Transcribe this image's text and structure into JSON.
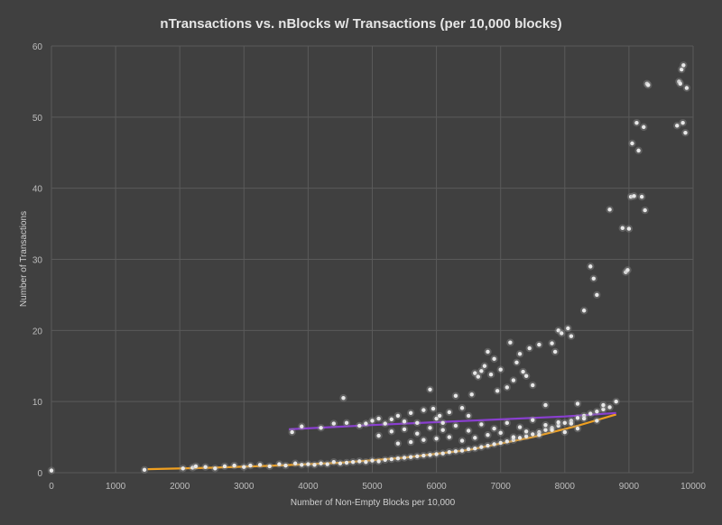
{
  "chart_data": {
    "type": "scatter",
    "title": "nTransactions vs. nBlocks w/ Transactions (per 10,000 blocks)",
    "xlabel": "Number of Non-Empty Blocks per 10,000",
    "ylabel": "Number of Transactions",
    "xlim": [
      0,
      10000
    ],
    "ylim": [
      0,
      60
    ],
    "xticks": [
      "0",
      "1000",
      "2000",
      "3000",
      "4000",
      "5000",
      "6000",
      "7000",
      "8000",
      "9000",
      "10000"
    ],
    "yticks": [
      "0",
      "10",
      "20",
      "30",
      "40",
      "50",
      "60"
    ],
    "grid": true,
    "legend": "none",
    "colors": {
      "background": "#404040",
      "points": "#e8e8e8",
      "glow": "#9a9a9a",
      "trend_low": "#f0a020",
      "trend_high": "#8a3fd0"
    },
    "series": [
      {
        "points": [
          [
            0,
            0.3
          ],
          [
            1450,
            0.4
          ],
          [
            2050,
            0.6
          ],
          [
            2200,
            0.7
          ],
          [
            2250,
            0.9
          ],
          [
            2400,
            0.8
          ],
          [
            2550,
            0.6
          ],
          [
            2700,
            0.9
          ],
          [
            2850,
            1.0
          ],
          [
            3000,
            0.8
          ],
          [
            3100,
            1.0
          ],
          [
            3250,
            1.1
          ],
          [
            3400,
            0.9
          ],
          [
            3550,
            1.2
          ],
          [
            3650,
            1.0
          ],
          [
            3800,
            1.3
          ],
          [
            3900,
            1.1
          ],
          [
            4000,
            1.2
          ],
          [
            4100,
            1.1
          ],
          [
            4200,
            1.3
          ],
          [
            4300,
            1.2
          ],
          [
            4400,
            1.5
          ],
          [
            4500,
            1.3
          ],
          [
            4600,
            1.4
          ],
          [
            4700,
            1.5
          ],
          [
            4800,
            1.6
          ],
          [
            4900,
            1.5
          ],
          [
            5000,
            1.7
          ],
          [
            5100,
            1.6
          ],
          [
            5200,
            1.8
          ],
          [
            5300,
            1.9
          ],
          [
            5400,
            2.0
          ],
          [
            5500,
            2.1
          ],
          [
            5600,
            2.2
          ],
          [
            5700,
            2.3
          ],
          [
            5800,
            2.4
          ],
          [
            5900,
            2.5
          ],
          [
            6000,
            2.6
          ],
          [
            6100,
            2.7
          ],
          [
            6200,
            2.9
          ],
          [
            6300,
            3.0
          ],
          [
            6400,
            3.1
          ],
          [
            6500,
            3.3
          ],
          [
            6600,
            3.4
          ],
          [
            6700,
            3.6
          ],
          [
            6800,
            3.8
          ],
          [
            6900,
            4.0
          ],
          [
            7000,
            4.2
          ],
          [
            7100,
            4.4
          ],
          [
            7200,
            4.6
          ],
          [
            7300,
            4.9
          ],
          [
            7400,
            5.1
          ],
          [
            7500,
            5.4
          ],
          [
            7600,
            5.7
          ],
          [
            7700,
            6.0
          ],
          [
            7800,
            6.3
          ],
          [
            7900,
            6.6
          ],
          [
            8000,
            7.0
          ],
          [
            8100,
            7.3
          ],
          [
            8200,
            7.7
          ],
          [
            8300,
            8.0
          ],
          [
            8400,
            8.3
          ],
          [
            8500,
            8.6
          ],
          [
            8600,
            8.9
          ],
          [
            8700,
            9.2
          ],
          [
            3750,
            5.7
          ],
          [
            3900,
            6.5
          ],
          [
            4200,
            6.3
          ],
          [
            4400,
            6.9
          ],
          [
            4550,
            10.5
          ],
          [
            4600,
            7.0
          ],
          [
            4800,
            6.6
          ],
          [
            4900,
            6.9
          ],
          [
            5000,
            7.3
          ],
          [
            5100,
            7.6
          ],
          [
            5200,
            6.9
          ],
          [
            5300,
            7.5
          ],
          [
            5400,
            8.0
          ],
          [
            5500,
            7.2
          ],
          [
            5600,
            8.4
          ],
          [
            5700,
            7.0
          ],
          [
            5800,
            8.8
          ],
          [
            5900,
            11.7
          ],
          [
            5950,
            9.0
          ],
          [
            6000,
            7.6
          ],
          [
            6050,
            8.0
          ],
          [
            6100,
            7.0
          ],
          [
            6200,
            8.5
          ],
          [
            6300,
            10.8
          ],
          [
            6400,
            9.1
          ],
          [
            6500,
            8.0
          ],
          [
            6550,
            11.0
          ],
          [
            6600,
            14.0
          ],
          [
            6650,
            13.5
          ],
          [
            6700,
            14.3
          ],
          [
            6750,
            15.0
          ],
          [
            6800,
            17.0
          ],
          [
            6850,
            13.8
          ],
          [
            6900,
            16.0
          ],
          [
            6950,
            11.5
          ],
          [
            7000,
            14.5
          ],
          [
            7100,
            12.0
          ],
          [
            7150,
            18.3
          ],
          [
            7200,
            13.0
          ],
          [
            7250,
            15.5
          ],
          [
            7300,
            16.7
          ],
          [
            7350,
            14.2
          ],
          [
            7400,
            13.6
          ],
          [
            7450,
            17.5
          ],
          [
            7500,
            12.3
          ],
          [
            7600,
            18.0
          ],
          [
            7700,
            9.5
          ],
          [
            7800,
            18.2
          ],
          [
            7850,
            17.0
          ],
          [
            7900,
            20.0
          ],
          [
            7950,
            19.6
          ],
          [
            8050,
            20.3
          ],
          [
            8100,
            19.2
          ],
          [
            8200,
            9.7
          ],
          [
            8300,
            22.8
          ],
          [
            8400,
            29.0
          ],
          [
            8450,
            27.3
          ],
          [
            8500,
            25.0
          ],
          [
            8600,
            9.5
          ],
          [
            8700,
            37.0
          ],
          [
            8800,
            10.0
          ],
          [
            8900,
            34.4
          ],
          [
            8950,
            28.2
          ],
          [
            8980,
            28.5
          ],
          [
            9000,
            34.3
          ],
          [
            9030,
            38.8
          ],
          [
            9050,
            46.3
          ],
          [
            9080,
            38.9
          ],
          [
            9120,
            49.2
          ],
          [
            9150,
            45.3
          ],
          [
            9200,
            38.8
          ],
          [
            9230,
            48.6
          ],
          [
            9250,
            36.9
          ],
          [
            9280,
            54.7
          ],
          [
            9300,
            54.5
          ],
          [
            9750,
            48.8
          ],
          [
            9780,
            55.0
          ],
          [
            9800,
            54.7
          ],
          [
            9820,
            56.7
          ],
          [
            9840,
            49.2
          ],
          [
            9850,
            57.3
          ],
          [
            9880,
            47.8
          ],
          [
            9900,
            54.1
          ],
          [
            5100,
            5.2
          ],
          [
            5300,
            5.8
          ],
          [
            5500,
            6.1
          ],
          [
            5700,
            5.5
          ],
          [
            5900,
            6.3
          ],
          [
            6100,
            6.0
          ],
          [
            6300,
            6.6
          ],
          [
            6500,
            5.9
          ],
          [
            6700,
            6.8
          ],
          [
            6900,
            6.2
          ],
          [
            7100,
            7.0
          ],
          [
            7300,
            6.4
          ],
          [
            7500,
            7.4
          ],
          [
            7700,
            6.7
          ],
          [
            7900,
            7.1
          ],
          [
            8100,
            6.9
          ],
          [
            8300,
            7.6
          ],
          [
            8500,
            7.3
          ],
          [
            5400,
            4.1
          ],
          [
            5600,
            4.3
          ],
          [
            5800,
            4.6
          ],
          [
            6000,
            4.8
          ],
          [
            6200,
            5.0
          ],
          [
            6400,
            4.5
          ],
          [
            6600,
            4.9
          ],
          [
            6800,
            5.3
          ],
          [
            7000,
            5.6
          ],
          [
            7200,
            5.0
          ],
          [
            7400,
            5.8
          ],
          [
            7600,
            5.3
          ],
          [
            7800,
            6.0
          ],
          [
            8000,
            5.7
          ],
          [
            8200,
            6.2
          ]
        ]
      }
    ],
    "trendlines": [
      {
        "color": "#f0a020",
        "x": [
          1500,
          2500,
          3500,
          4500,
          5500,
          6500,
          7500,
          8200,
          8800
        ],
        "y": [
          0.5,
          0.7,
          1.0,
          1.4,
          2.1,
          3.2,
          5.0,
          6.6,
          8.2
        ]
      },
      {
        "color": "#8a3fd0",
        "x": [
          3700,
          5000,
          6000,
          7000,
          8000,
          8800
        ],
        "y": [
          6.1,
          6.7,
          7.1,
          7.5,
          7.9,
          8.4
        ]
      }
    ]
  }
}
